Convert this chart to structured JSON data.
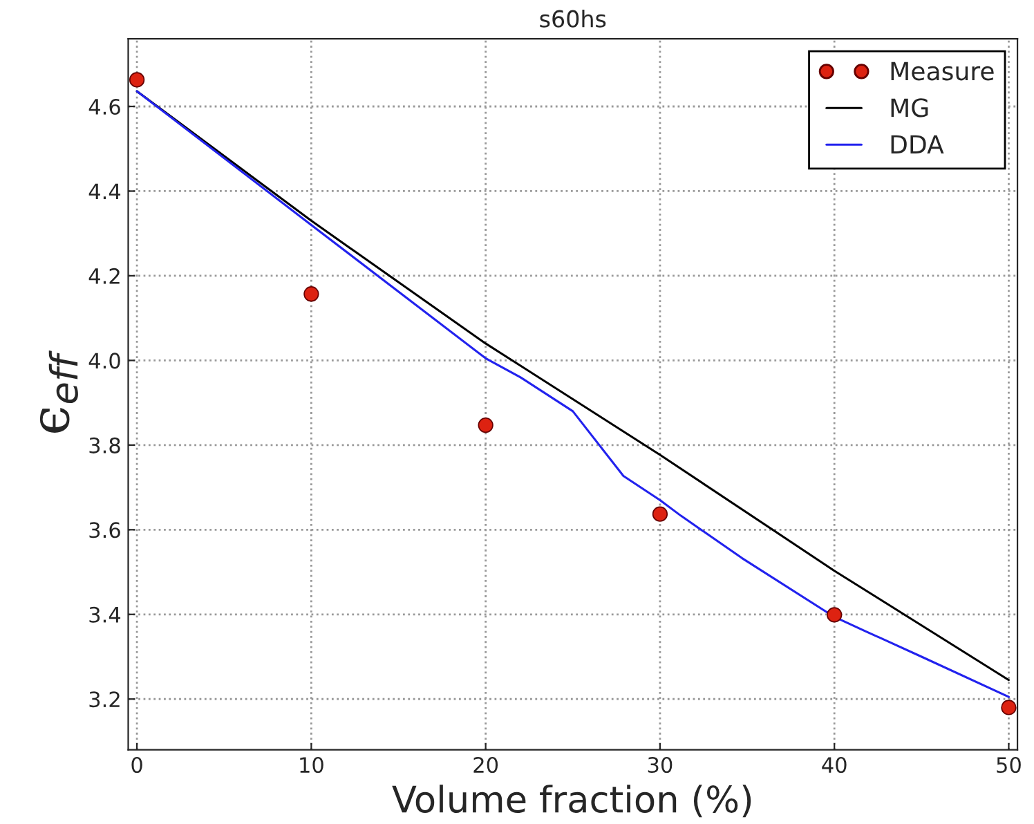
{
  "chart_data": {
    "type": "line",
    "title": "s60hs",
    "xlabel": "Volume fraction (%)",
    "ylabel": "ϵ$_{eff}$",
    "xlim": [
      -0.5,
      50.5
    ],
    "ylim": [
      3.08,
      4.76
    ],
    "xticks": [
      0,
      10,
      20,
      30,
      40,
      50
    ],
    "yticks": [
      3.2,
      3.4,
      3.6,
      3.8,
      {
        "value": 4,
        "label": "4.0"
      },
      4.2,
      4.4,
      4.6
    ],
    "grid": true,
    "legend": "top right",
    "series": [
      {
        "name": "Measure",
        "type": "scatter",
        "marker": "circle",
        "color": "#dd2211",
        "x": [
          0,
          10,
          20,
          30,
          40,
          50
        ],
        "values": [
          4.663,
          4.157,
          3.847,
          3.637,
          3.399,
          3.18
        ]
      },
      {
        "name": "MG",
        "color": "#000000",
        "x": [
          0,
          10,
          20,
          30,
          40,
          50
        ],
        "values": [
          4.636,
          4.33,
          4.04,
          3.777,
          3.503,
          3.245
        ]
      },
      {
        "name": "DDA",
        "color": "#2222ee",
        "x": [
          0,
          10,
          20,
          22,
          25,
          27.9,
          30,
          31.2,
          34.7,
          40,
          41.8,
          45,
          50
        ],
        "values": [
          4.636,
          4.32,
          4.005,
          3.96,
          3.88,
          3.727,
          3.67,
          3.633,
          3.533,
          3.394,
          3.36,
          3.3,
          3.205
        ]
      }
    ]
  }
}
